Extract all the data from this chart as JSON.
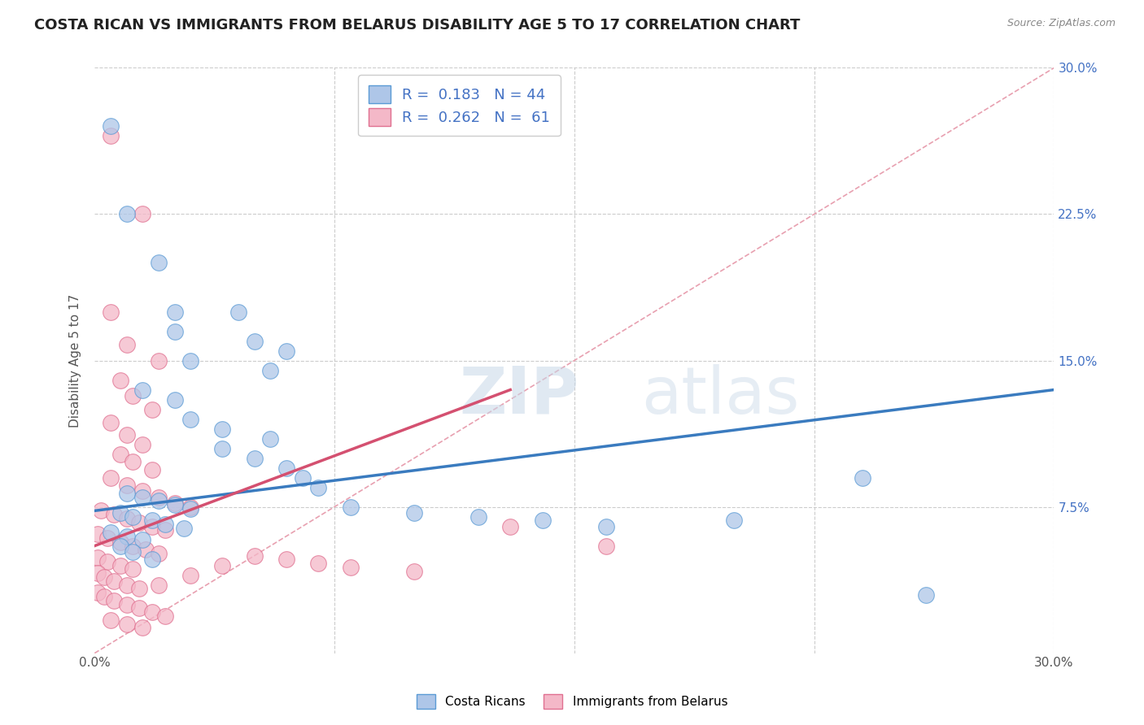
{
  "title": "COSTA RICAN VS IMMIGRANTS FROM BELARUS DISABILITY AGE 5 TO 17 CORRELATION CHART",
  "source": "Source: ZipAtlas.com",
  "xlabel": "",
  "ylabel": "Disability Age 5 to 17",
  "xmin": 0.0,
  "xmax": 0.3,
  "ymin": 0.0,
  "ymax": 0.3,
  "xticks": [
    0.0,
    0.075,
    0.15,
    0.225,
    0.3
  ],
  "xticklabels": [
    "0.0%",
    "",
    "",
    "",
    "30.0%"
  ],
  "yticks": [
    0.0,
    0.075,
    0.15,
    0.225,
    0.3
  ],
  "right_yticklabels": [
    "",
    "7.5%",
    "15.0%",
    "22.5%",
    "30.0%"
  ],
  "blue_R": 0.183,
  "blue_N": 44,
  "pink_R": 0.262,
  "pink_N": 61,
  "blue_color": "#aec6e8",
  "blue_edge_color": "#5b9bd5",
  "blue_line_color": "#3a7bbf",
  "pink_color": "#f4b8c8",
  "pink_edge_color": "#e07090",
  "pink_line_color": "#d45070",
  "diag_color": "#e8a0b0",
  "blue_scatter": [
    [
      0.005,
      0.27
    ],
    [
      0.01,
      0.225
    ],
    [
      0.02,
      0.2
    ],
    [
      0.025,
      0.175
    ],
    [
      0.025,
      0.165
    ],
    [
      0.045,
      0.175
    ],
    [
      0.05,
      0.16
    ],
    [
      0.06,
      0.155
    ],
    [
      0.03,
      0.15
    ],
    [
      0.055,
      0.145
    ],
    [
      0.015,
      0.135
    ],
    [
      0.025,
      0.13
    ],
    [
      0.03,
      0.12
    ],
    [
      0.04,
      0.115
    ],
    [
      0.055,
      0.11
    ],
    [
      0.04,
      0.105
    ],
    [
      0.05,
      0.1
    ],
    [
      0.06,
      0.095
    ],
    [
      0.065,
      0.09
    ],
    [
      0.07,
      0.085
    ],
    [
      0.01,
      0.082
    ],
    [
      0.015,
      0.08
    ],
    [
      0.02,
      0.078
    ],
    [
      0.025,
      0.076
    ],
    [
      0.03,
      0.074
    ],
    [
      0.008,
      0.072
    ],
    [
      0.012,
      0.07
    ],
    [
      0.018,
      0.068
    ],
    [
      0.022,
      0.066
    ],
    [
      0.028,
      0.064
    ],
    [
      0.005,
      0.062
    ],
    [
      0.01,
      0.06
    ],
    [
      0.015,
      0.058
    ],
    [
      0.008,
      0.055
    ],
    [
      0.012,
      0.052
    ],
    [
      0.018,
      0.048
    ],
    [
      0.08,
      0.075
    ],
    [
      0.1,
      0.072
    ],
    [
      0.12,
      0.07
    ],
    [
      0.14,
      0.068
    ],
    [
      0.16,
      0.065
    ],
    [
      0.2,
      0.068
    ],
    [
      0.24,
      0.09
    ],
    [
      0.26,
      0.03
    ]
  ],
  "pink_scatter": [
    [
      0.005,
      0.265
    ],
    [
      0.015,
      0.225
    ],
    [
      0.005,
      0.175
    ],
    [
      0.01,
      0.158
    ],
    [
      0.02,
      0.15
    ],
    [
      0.008,
      0.14
    ],
    [
      0.012,
      0.132
    ],
    [
      0.018,
      0.125
    ],
    [
      0.005,
      0.118
    ],
    [
      0.01,
      0.112
    ],
    [
      0.015,
      0.107
    ],
    [
      0.008,
      0.102
    ],
    [
      0.012,
      0.098
    ],
    [
      0.018,
      0.094
    ],
    [
      0.005,
      0.09
    ],
    [
      0.01,
      0.086
    ],
    [
      0.015,
      0.083
    ],
    [
      0.02,
      0.08
    ],
    [
      0.025,
      0.077
    ],
    [
      0.03,
      0.075
    ],
    [
      0.002,
      0.073
    ],
    [
      0.006,
      0.071
    ],
    [
      0.01,
      0.069
    ],
    [
      0.014,
      0.067
    ],
    [
      0.018,
      0.065
    ],
    [
      0.022,
      0.063
    ],
    [
      0.001,
      0.061
    ],
    [
      0.004,
      0.059
    ],
    [
      0.008,
      0.057
    ],
    [
      0.012,
      0.055
    ],
    [
      0.016,
      0.053
    ],
    [
      0.02,
      0.051
    ],
    [
      0.001,
      0.049
    ],
    [
      0.004,
      0.047
    ],
    [
      0.008,
      0.045
    ],
    [
      0.012,
      0.043
    ],
    [
      0.001,
      0.041
    ],
    [
      0.003,
      0.039
    ],
    [
      0.006,
      0.037
    ],
    [
      0.01,
      0.035
    ],
    [
      0.014,
      0.033
    ],
    [
      0.001,
      0.031
    ],
    [
      0.003,
      0.029
    ],
    [
      0.006,
      0.027
    ],
    [
      0.01,
      0.025
    ],
    [
      0.014,
      0.023
    ],
    [
      0.018,
      0.021
    ],
    [
      0.022,
      0.019
    ],
    [
      0.005,
      0.017
    ],
    [
      0.01,
      0.015
    ],
    [
      0.015,
      0.013
    ],
    [
      0.02,
      0.035
    ],
    [
      0.03,
      0.04
    ],
    [
      0.04,
      0.045
    ],
    [
      0.05,
      0.05
    ],
    [
      0.06,
      0.048
    ],
    [
      0.07,
      0.046
    ],
    [
      0.08,
      0.044
    ],
    [
      0.1,
      0.042
    ],
    [
      0.13,
      0.065
    ],
    [
      0.16,
      0.055
    ]
  ],
  "watermark_zip": "ZIP",
  "watermark_atlas": "atlas",
  "background_color": "#ffffff",
  "grid_color": "#cccccc",
  "title_fontsize": 13,
  "axis_label_fontsize": 11,
  "tick_fontsize": 11,
  "legend_fontsize": 13,
  "right_tick_color": "#4472c4"
}
